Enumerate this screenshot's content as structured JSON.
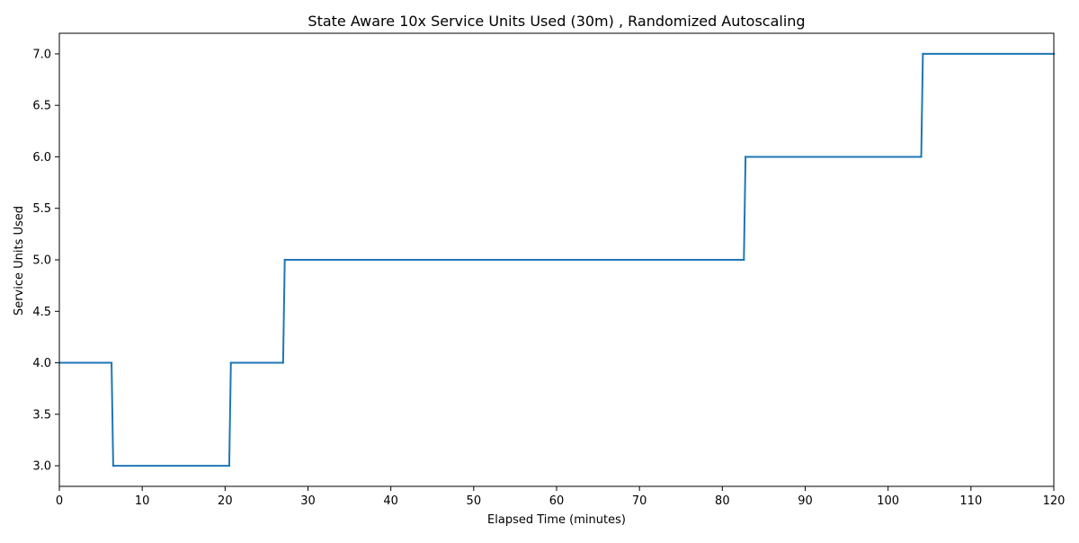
{
  "chart_data": {
    "type": "line",
    "title": "State Aware 10x Service Units Used (30m) , Randomized Autoscaling",
    "xlabel": "Elapsed Time (minutes)",
    "ylabel": "Service Units Used",
    "xlim": [
      0,
      120
    ],
    "ylim": [
      2.8,
      7.2
    ],
    "xticks": [
      0,
      10,
      20,
      30,
      40,
      50,
      60,
      70,
      80,
      90,
      100,
      110,
      120
    ],
    "xtick_labels": [
      "0",
      "10",
      "20",
      "30",
      "40",
      "50",
      "60",
      "70",
      "80",
      "90",
      "100",
      "110",
      "120"
    ],
    "yticks": [
      3.0,
      3.5,
      4.0,
      4.5,
      5.0,
      5.5,
      6.0,
      6.5,
      7.0
    ],
    "ytick_labels": [
      "3.0",
      "3.5",
      "4.0",
      "4.5",
      "5.0",
      "5.5",
      "6.0",
      "6.5",
      "7.0"
    ],
    "grid": false,
    "series": [
      {
        "color": "#1f77b4",
        "x": [
          0,
          6.3,
          6.5,
          20.5,
          20.7,
          27.0,
          27.2,
          82.6,
          82.8,
          104.0,
          104.2,
          120
        ],
        "values": [
          4,
          4,
          3,
          3,
          4,
          4,
          5,
          5,
          6,
          6,
          7,
          7
        ]
      }
    ]
  }
}
